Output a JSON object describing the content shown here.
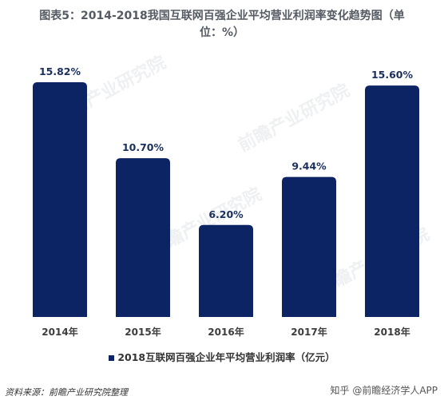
{
  "title_line1": "图表5：2014-2018我国互联网百强企业平均营业利润率变化趋势图（单",
  "title_line2": "位：%）",
  "legend_label": "2018互联网百强企业年平均营业利润率（亿元）",
  "source": "资料来源：前瞻产业研究院整理",
  "credit": "知乎 @前瞻经济学人APP",
  "watermark_text": "前瞻产业研究院",
  "colors": {
    "bar": "#0c2463"
  },
  "chart_data": {
    "type": "bar",
    "categories": [
      "2014年",
      "2015年",
      "2016年",
      "2017年",
      "2018年"
    ],
    "values": [
      15.82,
      10.7,
      6.2,
      9.44,
      15.6
    ],
    "labels": [
      "15.82%",
      "10.70%",
      "6.20%",
      "9.44%",
      "15.60%"
    ],
    "ylim": [
      0,
      16.5
    ],
    "grid": false,
    "legend": "bottom"
  }
}
